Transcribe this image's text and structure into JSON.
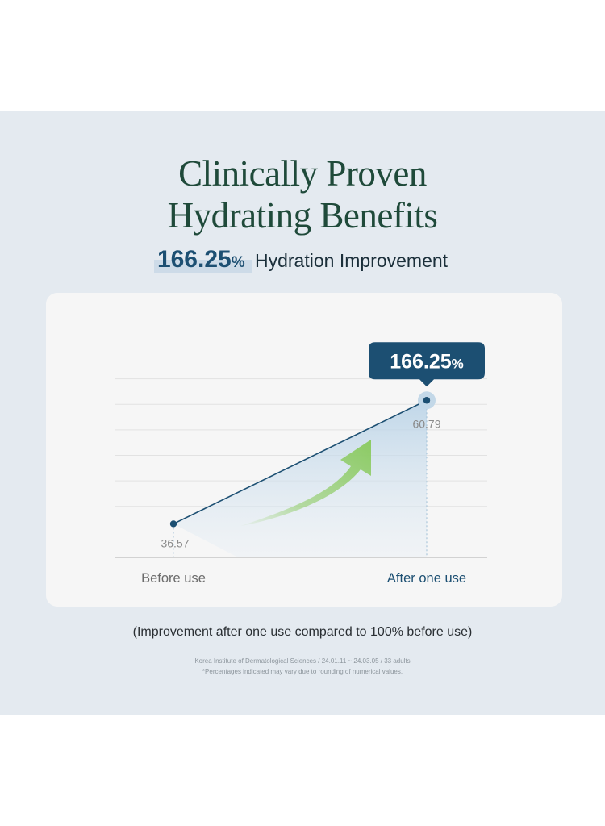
{
  "header": {
    "title_line1": "Clinically Proven",
    "title_line2": "Hydrating Benefits",
    "highlight_value": "166.25",
    "highlight_unit": "%",
    "highlight_text": "Hydration Improvement"
  },
  "chart_data": {
    "type": "line",
    "categories": [
      "Before use",
      "After one use"
    ],
    "series": [
      {
        "values": [
          36.57,
          60.79
        ]
      }
    ],
    "data_labels": [
      "36.57",
      "60.79"
    ],
    "annotation": {
      "value": "166.25",
      "unit": "%"
    },
    "ylim": [
      30,
      70
    ],
    "grid": true,
    "colors": {
      "line": "#1c4f72",
      "callout": "#1c4f72",
      "arrow": "#92cd6a",
      "fill": "#b6d1e6",
      "grid": "#e2e2e2",
      "axis": "#bdbdbd",
      "label_before": "#6b6b6b",
      "label_after": "#1c4f72"
    }
  },
  "footer": {
    "note": "(Improvement after one use compared to 100% before use)",
    "source_line1": "Korea Institute of Dermatological Sciences / 24.01.11 ~ 24.03.05 / 33 adults",
    "source_line2": "*Percentages indicated may vary due to rounding of numerical values."
  }
}
